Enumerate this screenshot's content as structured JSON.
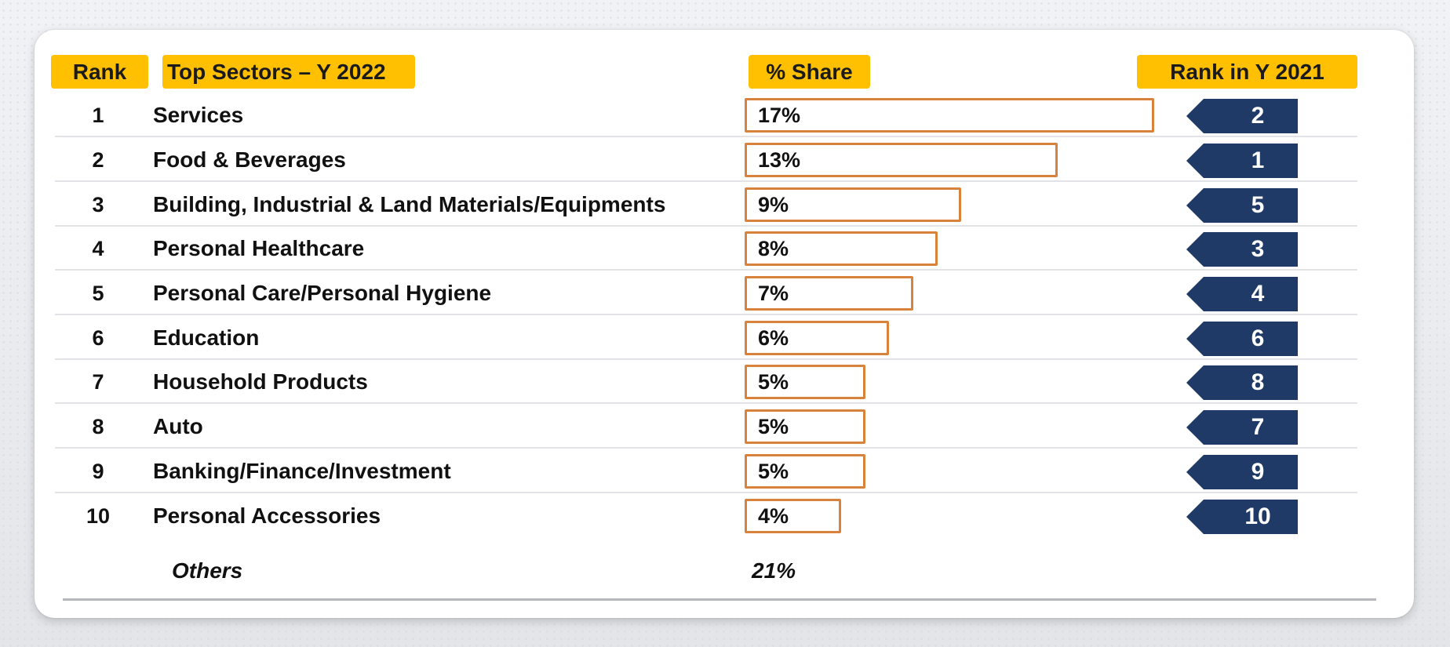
{
  "headers": {
    "rank": "Rank",
    "sectors": "Top Sectors – Y 2022",
    "share": "% Share",
    "prev_rank": "Rank in Y 2021"
  },
  "others": {
    "label": "Others",
    "share": "21%"
  },
  "colors": {
    "header_fill": "#fec000",
    "bar_border": "#d9823b",
    "rank_tag": "#1f3a66"
  },
  "chart_data": {
    "type": "table",
    "columns": [
      "Rank",
      "Top Sectors – Y 2022",
      "% Share",
      "Rank in Y 2021"
    ],
    "rows": [
      {
        "rank": "1",
        "sector": "Services",
        "share": 17,
        "share_label": "17%",
        "prev_rank": "2"
      },
      {
        "rank": "2",
        "sector": "Food & Beverages",
        "share": 13,
        "share_label": "13%",
        "prev_rank": "1"
      },
      {
        "rank": "3",
        "sector": "Building, Industrial & Land Materials/Equipments",
        "share": 9,
        "share_label": "9%",
        "prev_rank": "5"
      },
      {
        "rank": "4",
        "sector": "Personal Healthcare",
        "share": 8,
        "share_label": "8%",
        "prev_rank": "3"
      },
      {
        "rank": "5",
        "sector": "Personal Care/Personal Hygiene",
        "share": 7,
        "share_label": "7%",
        "prev_rank": "4"
      },
      {
        "rank": "6",
        "sector": "Education",
        "share": 6,
        "share_label": "6%",
        "prev_rank": "6"
      },
      {
        "rank": "7",
        "sector": "Household Products",
        "share": 5,
        "share_label": "5%",
        "prev_rank": "8"
      },
      {
        "rank": "8",
        "sector": "Auto",
        "share": 5,
        "share_label": "5%",
        "prev_rank": "7"
      },
      {
        "rank": "9",
        "sector": "Banking/Finance/Investment",
        "share": 5,
        "share_label": "5%",
        "prev_rank": "9"
      },
      {
        "rank": "10",
        "sector": "Personal Accessories",
        "share": 4,
        "share_label": "4%",
        "prev_rank": "10"
      }
    ]
  }
}
